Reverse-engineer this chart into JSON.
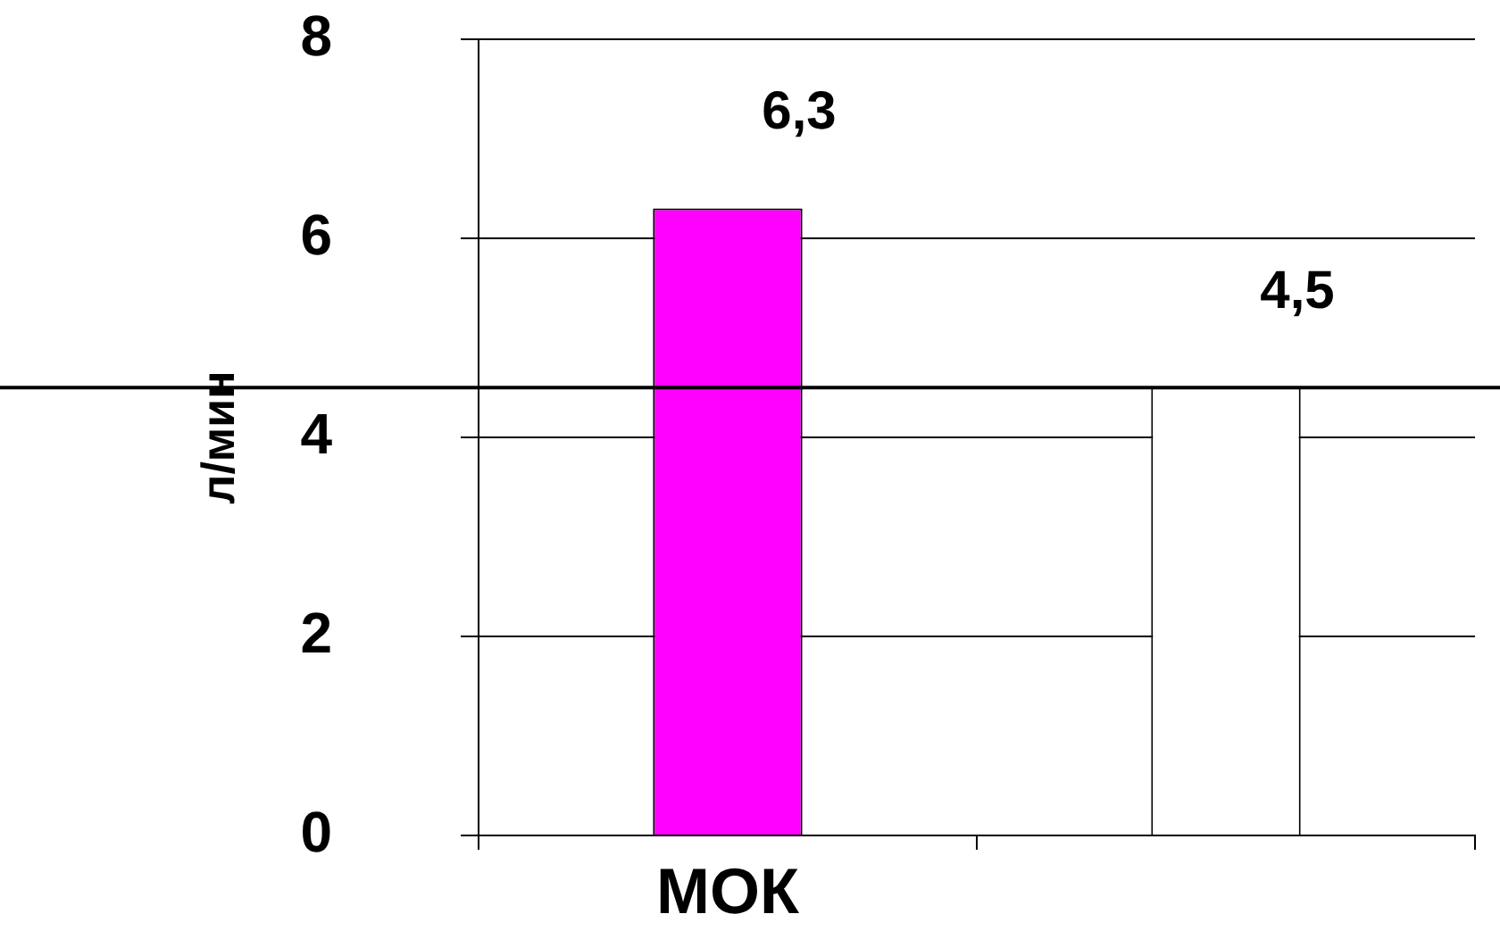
{
  "chart_data": {
    "type": "bar",
    "ylabel": "л/мин",
    "categories": [
      "МОК",
      null
    ],
    "values": [
      6.3,
      4.5
    ],
    "colors": [
      "#ff00ff",
      "#ffffff"
    ],
    "value_labels": [
      "6,3",
      "4,5"
    ],
    "ylim": [
      0,
      8
    ],
    "yticks": [
      0,
      2,
      4,
      6,
      8
    ],
    "grid": "y",
    "legend": false,
    "ref_lines": [
      {
        "axis": "y",
        "value": 4.5,
        "color": "#000000"
      }
    ]
  }
}
